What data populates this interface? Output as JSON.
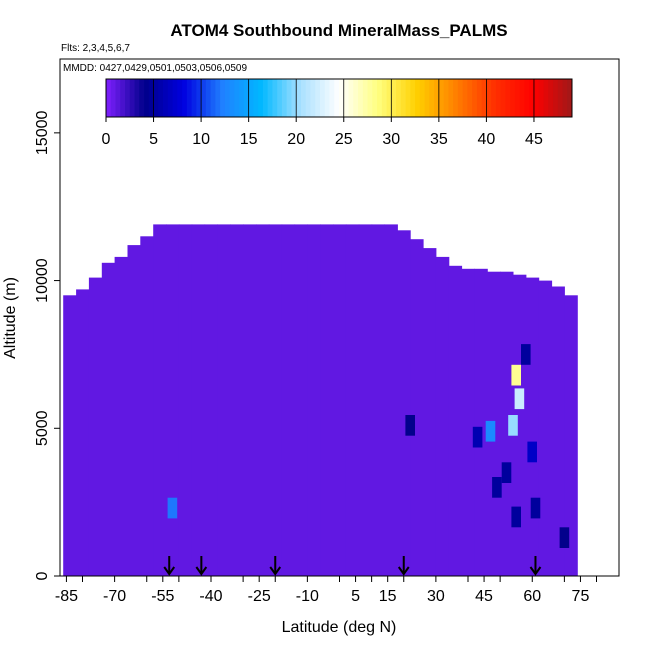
{
  "chart_data": {
    "type": "heatmap",
    "title": "ATOM4 Southbound MineralMass_PALMS",
    "flights_note": "Flts: 2,3,4,5,6,7",
    "dates_note": "MMDD: 0427,0429,0501,0503,0506,0509",
    "xlabel": "Latitude (deg N)",
    "ylabel": "Altitude (m)",
    "xlim": [
      -87,
      87
    ],
    "ylim": [
      0,
      17500
    ],
    "x_ticks": [
      -85,
      -70,
      -55,
      -40,
      -25,
      -10,
      5,
      15,
      30,
      45,
      60,
      75
    ],
    "x_tick_labels": [
      "-85",
      "-70",
      "-55",
      "-40",
      "-25",
      "-10",
      "5",
      "15",
      "30",
      "45",
      "60",
      "75"
    ],
    "y_ticks": [
      0,
      5000,
      10000,
      15000
    ],
    "y_tick_labels": [
      "0",
      "5000",
      "10000",
      "15000"
    ],
    "colorbar": {
      "min": 0,
      "max": 49,
      "ticks": [
        0,
        5,
        10,
        15,
        20,
        25,
        30,
        35,
        40,
        45
      ],
      "tick_labels": [
        "0",
        "5",
        "10",
        "15",
        "20",
        "25",
        "30",
        "35",
        "40",
        "45"
      ],
      "colors": [
        "#8020ff",
        "#00008a",
        "#0000e0",
        "#2080ff",
        "#00b8ff",
        "#a8e0ff",
        "#ffffff",
        "#ffff80",
        "#ffd000",
        "#ff8000",
        "#ff3000",
        "#ff0000",
        "#a01818"
      ]
    },
    "background_value": 1,
    "coverage": [
      {
        "lat": -84,
        "top": 9500
      },
      {
        "lat": -80,
        "top": 9700
      },
      {
        "lat": -76,
        "top": 10100
      },
      {
        "lat": -72,
        "top": 10600
      },
      {
        "lat": -68,
        "top": 10800
      },
      {
        "lat": -64,
        "top": 11200
      },
      {
        "lat": -60,
        "top": 11500
      },
      {
        "lat": -56,
        "top": 11900
      },
      {
        "lat": -52,
        "top": 11900
      },
      {
        "lat": -48,
        "top": 11900
      },
      {
        "lat": -44,
        "top": 11900
      },
      {
        "lat": -40,
        "top": 11900
      },
      {
        "lat": -36,
        "top": 11900
      },
      {
        "lat": -32,
        "top": 11900
      },
      {
        "lat": -28,
        "top": 11900
      },
      {
        "lat": -24,
        "top": 11900
      },
      {
        "lat": -20,
        "top": 11900
      },
      {
        "lat": -16,
        "top": 11900
      },
      {
        "lat": -12,
        "top": 11900
      },
      {
        "lat": -8,
        "top": 11900
      },
      {
        "lat": -4,
        "top": 11900
      },
      {
        "lat": 0,
        "top": 11900
      },
      {
        "lat": 4,
        "top": 11900
      },
      {
        "lat": 8,
        "top": 11900
      },
      {
        "lat": 12,
        "top": 11900
      },
      {
        "lat": 16,
        "top": 11900
      },
      {
        "lat": 20,
        "top": 11700
      },
      {
        "lat": 24,
        "top": 11400
      },
      {
        "lat": 28,
        "top": 11100
      },
      {
        "lat": 32,
        "top": 10800
      },
      {
        "lat": 36,
        "top": 10500
      },
      {
        "lat": 40,
        "top": 10400
      },
      {
        "lat": 44,
        "top": 10400
      },
      {
        "lat": 48,
        "top": 10300
      },
      {
        "lat": 52,
        "top": 10300
      },
      {
        "lat": 56,
        "top": 10200
      },
      {
        "lat": 60,
        "top": 10100
      },
      {
        "lat": 64,
        "top": 10000
      },
      {
        "lat": 68,
        "top": 9800
      },
      {
        "lat": 72,
        "top": 9500
      }
    ],
    "hotspots": [
      {
        "lat": 55,
        "alt": 6800,
        "value": 28
      },
      {
        "lat": 56,
        "alt": 6000,
        "value": 22
      },
      {
        "lat": 54,
        "alt": 5100,
        "value": 20
      },
      {
        "lat": 47,
        "alt": 4900,
        "value": 13
      },
      {
        "lat": 43,
        "alt": 4700,
        "value": 6
      },
      {
        "lat": 60,
        "alt": 4200,
        "value": 7
      },
      {
        "lat": 52,
        "alt": 3500,
        "value": 5
      },
      {
        "lat": 49,
        "alt": 3000,
        "value": 5
      },
      {
        "lat": 55,
        "alt": 2000,
        "value": 5
      },
      {
        "lat": 61,
        "alt": 2300,
        "value": 5
      },
      {
        "lat": 22,
        "alt": 5100,
        "value": 4
      },
      {
        "lat": 58,
        "alt": 7500,
        "value": 5
      },
      {
        "lat": -52,
        "alt": 2300,
        "value": 12
      },
      {
        "lat": 70,
        "alt": 1300,
        "value": 4
      }
    ],
    "flight_markers_lat": [
      -53,
      -43,
      -20,
      20,
      61
    ]
  }
}
